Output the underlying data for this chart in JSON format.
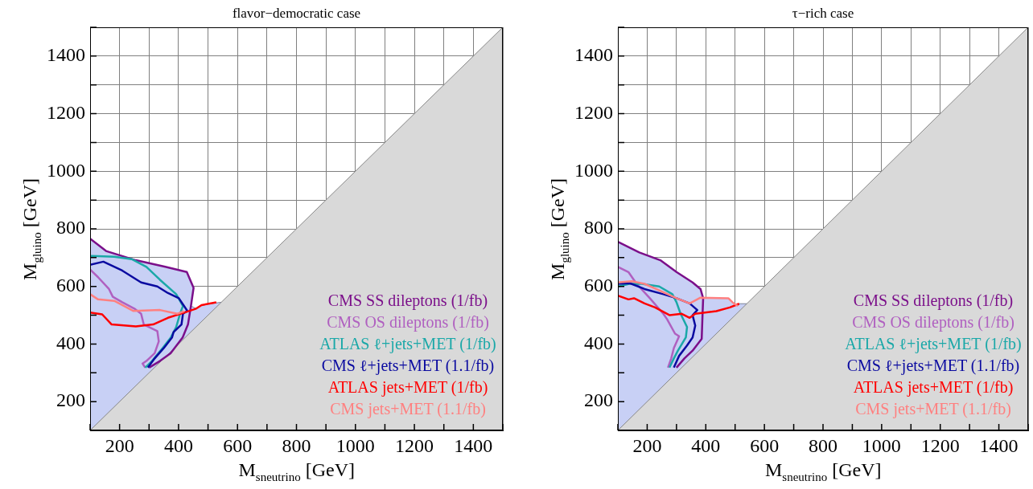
{
  "chart_data": [
    {
      "type": "line",
      "title": "flavor−democratic case",
      "xlabel": "M$_{sneutrino}$  [GeV]",
      "ylabel": "M$_{gluino}$ [GeV]",
      "xlim": [
        100,
        1500
      ],
      "ylim": [
        100,
        1500
      ],
      "xticks": [
        {
          "value": 100,
          "label": null
        },
        200,
        {
          "value": 300,
          "label": null
        },
        400,
        {
          "value": 500,
          "label": null
        },
        600,
        {
          "value": 700,
          "label": null
        },
        800,
        {
          "value": 900,
          "label": null
        },
        1000,
        {
          "value": 1100,
          "label": null
        },
        1200,
        {
          "value": 1300,
          "label": null
        },
        1400,
        {
          "value": 1500,
          "label": null
        }
      ],
      "yticks": [
        {
          "value": 100,
          "label": null
        },
        200,
        {
          "value": 300,
          "label": null
        },
        400,
        {
          "value": 500,
          "label": null
        },
        600,
        {
          "value": 700,
          "label": null
        },
        800,
        {
          "value": 900,
          "label": null
        },
        1000,
        {
          "value": 1100,
          "label": null
        },
        1200,
        {
          "value": 1300,
          "label": null
        },
        1400,
        {
          "value": 1500,
          "label": null
        }
      ],
      "grid": true,
      "legend": "bottom right",
      "marker": "none",
      "series": [
        {
          "type": "area",
          "color": "#c8d0f5",
          "x": [
            100,
            154,
            255,
            355,
            428,
            451,
            442,
            460,
            478,
            515,
            545
          ],
          "values": [
            766,
            723,
            691,
            668,
            650,
            595,
            532,
            523,
            535,
            541,
            545
          ]
        },
        {
          "type": "area",
          "color": "#d9d9d9",
          "x": [
            100,
            1500
          ],
          "values": [
            100,
            1500
          ]
        },
        {
          "name": "CMS SS dileptons (1/fb)",
          "color": "#7b0f8a",
          "x": [
            100,
            154,
            255,
            355,
            428,
            451,
            442,
            432,
            414,
            373,
            337,
            300
          ],
          "values": [
            766,
            723,
            691,
            668,
            650,
            595,
            532,
            468,
            423,
            368,
            341,
            318
          ]
        },
        {
          "name": "CMS OS dileptons (1/fb)",
          "color": "#b060c0",
          "x": [
            100,
            127,
            164,
            177,
            209,
            250,
            273,
            282,
            328,
            333,
            319,
            291,
            278,
            287
          ],
          "values": [
            659,
            632,
            591,
            564,
            545,
            523,
            505,
            468,
            445,
            409,
            368,
            341,
            332,
            318
          ]
        },
        {
          "name": "ATLAS ℓ+jets+MET (1/fb)",
          "color": "#1aa8a8",
          "x": [
            100,
            127,
            182,
            241,
            291,
            337,
            392,
            415,
            405,
            392,
            374,
            346,
            310,
            287
          ],
          "values": [
            706,
            705,
            703,
            695,
            668,
            623,
            573,
            532,
            505,
            459,
            423,
            386,
            341,
            318
          ]
        },
        {
          "name": "CMS ℓ+jets+MET (1.1/fb)",
          "color": "#0a0aa0",
          "x": [
            100,
            145,
            209,
            273,
            328,
            364,
            401,
            430,
            415,
            410,
            383,
            378,
            350,
            319,
            296
          ],
          "values": [
            675,
            686,
            655,
            614,
            600,
            577,
            559,
            515,
            505,
            468,
            441,
            423,
            386,
            350,
            318
          ]
        },
        {
          "name": "ATLAS jets+MET (1/fb)",
          "color": "#ff0000",
          "x": [
            100,
            141,
            173,
            255,
            314,
            364,
            419,
            460,
            478,
            528
          ],
          "values": [
            509,
            503,
            468,
            461,
            468,
            491,
            509,
            523,
            535,
            545
          ]
        },
        {
          "name": "CMS jets+MET (1.1/fb)",
          "color": "#ff8080",
          "x": [
            100,
            127,
            182,
            246,
            337,
            396,
            419
          ],
          "values": [
            573,
            555,
            550,
            515,
            518,
            505,
            514
          ]
        }
      ]
    },
    {
      "type": "line",
      "title": "τ−rich case",
      "xlabel": "M$_{sneutrino}$  [GeV]",
      "ylabel": "M$_{gluino}$ [GeV]",
      "xlim": [
        100,
        1500
      ],
      "ylim": [
        100,
        1500
      ],
      "xticks": [
        {
          "value": 100,
          "label": null
        },
        200,
        {
          "value": 300,
          "label": null
        },
        400,
        {
          "value": 500,
          "label": null
        },
        600,
        {
          "value": 700,
          "label": null
        },
        800,
        {
          "value": 900,
          "label": null
        },
        1000,
        {
          "value": 1100,
          "label": null
        },
        1200,
        {
          "value": 1300,
          "label": null
        },
        1400,
        {
          "value": 1500,
          "label": null
        }
      ],
      "yticks": [
        {
          "value": 100,
          "label": null
        },
        200,
        {
          "value": 300,
          "label": null
        },
        400,
        {
          "value": 500,
          "label": null
        },
        600,
        {
          "value": 700,
          "label": null
        },
        800,
        {
          "value": 900,
          "label": null
        },
        1000,
        {
          "value": 1100,
          "label": null
        },
        1200,
        {
          "value": 1300,
          "label": null
        },
        1400,
        {
          "value": 1500,
          "label": null
        }
      ],
      "grid": true,
      "legend": "bottom right",
      "marker": "none",
      "series": [
        {
          "type": "area",
          "color": "#c8d0f5",
          "x": [
            100,
            173,
            245,
            300,
            355,
            382,
            391,
            477,
            491,
            509,
            514,
            540
          ],
          "values": [
            755,
            718,
            691,
            650,
            614,
            591,
            559,
            559,
            545,
            532,
            540,
            540
          ]
        },
        {
          "type": "area",
          "color": "#d9d9d9",
          "x": [
            100,
            1500
          ],
          "values": [
            100,
            1500
          ]
        },
        {
          "name": "CMS SS dileptons (1/fb)",
          "color": "#7b0f8a",
          "x": [
            100,
            173,
            245,
            300,
            355,
            382,
            391,
            389,
            386,
            355,
            327,
            300
          ],
          "values": [
            755,
            718,
            691,
            650,
            614,
            591,
            559,
            505,
            418,
            377,
            350,
            318
          ]
        },
        {
          "name": "CMS OS dileptons (1/fb)",
          "color": "#b060c0",
          "x": [
            100,
            136,
            164,
            209,
            255,
            268,
            295,
            309,
            291,
            282,
            271
          ],
          "values": [
            668,
            650,
            609,
            559,
            505,
            486,
            436,
            427,
            386,
            350,
            318
          ]
        },
        {
          "name": "ATLAS ℓ+jets+MET (1/fb)",
          "color": "#1aa8a8",
          "x": [
            100,
            139,
            182,
            241,
            286,
            300,
            314,
            336,
            332,
            305,
            291,
            276
          ],
          "values": [
            600,
            609,
            609,
            600,
            573,
            545,
            505,
            459,
            423,
            377,
            350,
            318
          ]
        },
        {
          "name": "CMS ℓ+jets+MET (1.1/fb)",
          "color": "#0a0aa0",
          "x": [
            100,
            141,
            191,
            255,
            300,
            345,
            371,
            355,
            364,
            355,
            336,
            309,
            291
          ],
          "values": [
            609,
            611,
            591,
            573,
            559,
            541,
            518,
            500,
            464,
            423,
            395,
            359,
            318
          ]
        },
        {
          "name": "ATLAS jets+MET (1/fb)",
          "color": "#ff0000",
          "x": [
            100,
            136,
            155,
            191,
            227,
            277,
            318,
            345,
            364,
            436,
            482,
            514
          ],
          "values": [
            568,
            555,
            559,
            541,
            527,
            500,
            505,
            491,
            505,
            514,
            527,
            540
          ]
        },
        {
          "name": "CMS jets+MET (1.1/fb)",
          "color": "#ff8080",
          "x": [
            100,
            147,
            191,
            241,
            300,
            345,
            382,
            477,
            491,
            509
          ],
          "values": [
            614,
            618,
            609,
            586,
            559,
            541,
            561,
            559,
            545,
            532
          ]
        }
      ]
    }
  ]
}
